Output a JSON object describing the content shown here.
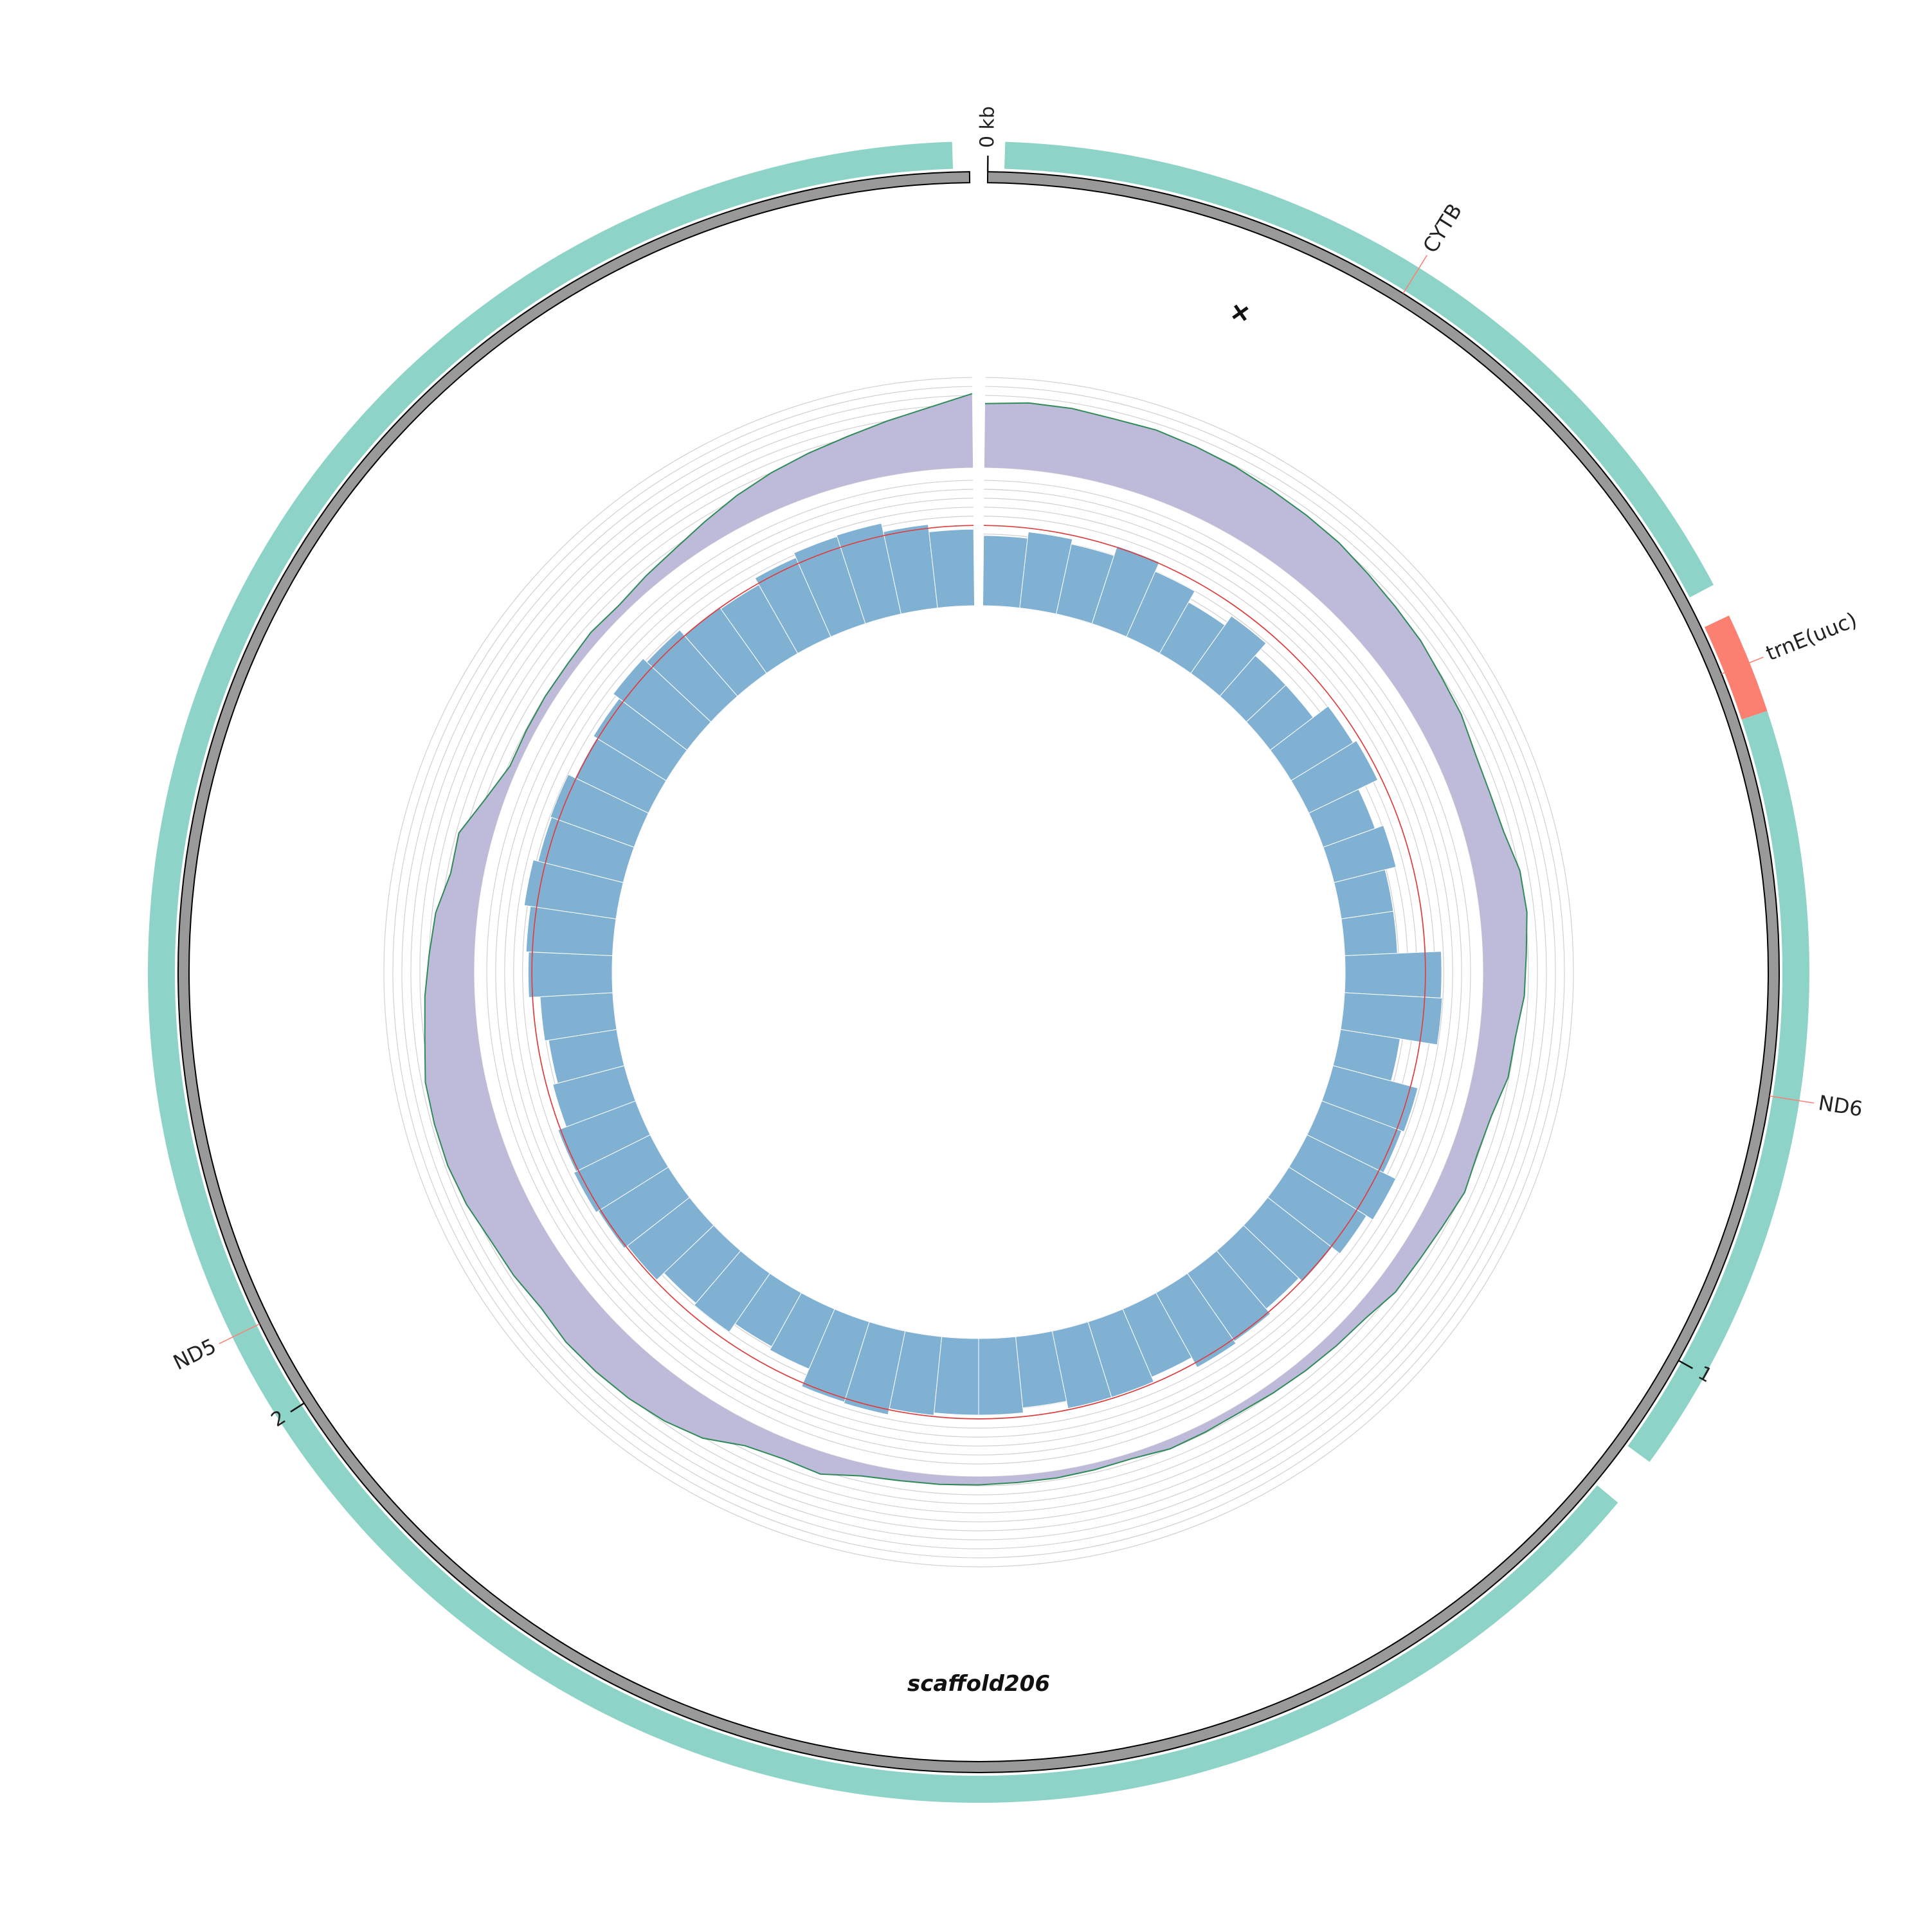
{
  "scaffold": {
    "name": "scaffold206",
    "length_kb": 3.03,
    "strand_symbol": "+"
  },
  "scale": {
    "ticks": [
      {
        "kb": 0,
        "label": "0 kb"
      },
      {
        "kb": 1,
        "label": "1"
      },
      {
        "kb": 2,
        "label": "2"
      }
    ]
  },
  "genes": [
    {
      "name": "CYTB",
      "start_kb": 0.01,
      "end_kb": 0.52,
      "type": "cds"
    },
    {
      "name": "trnE(uuc)",
      "start_kb": 0.54,
      "end_kb": 0.6,
      "type": "trna"
    },
    {
      "name": "ND6",
      "start_kb": 0.6,
      "end_kb": 1.06,
      "type": "cds"
    },
    {
      "name": "ND5",
      "start_kb": 1.09,
      "end_kb": 3.02,
      "type": "cds"
    }
  ],
  "gc_skew": {
    "values": [
      0.71,
      0.74,
      0.74,
      0.72,
      0.73,
      0.71,
      0.69,
      0.66,
      0.64,
      0.62,
      0.58,
      0.55,
      0.53,
      0.49,
      0.47,
      0.42,
      0.41,
      0.43,
      0.51,
      0.52,
      0.48,
      0.46,
      0.4,
      0.39,
      0.31,
      0.29,
      0.32,
      0.27,
      0.24,
      0.23,
      0.16,
      0.14,
      0.12,
      0.1,
      0.08,
      0.09,
      0.1,
      0.06,
      0.07,
      0.08,
      0.08,
      0.09,
      0.1,
      0.11,
      0.14,
      0.24,
      0.22,
      0.26,
      0.41,
      0.48,
      0.52,
      0.54,
      0.55,
      0.52,
      0.56,
      0.58,
      0.64,
      0.67,
      0.67,
      0.66,
      0.59,
      0.55,
      0.5,
      0.46,
      0.36,
      0.37,
      0.2,
      0.08,
      0.09,
      0.1,
      0.1,
      0.12,
      0.1,
      0.14,
      0.18,
      0.25,
      0.33,
      0.4,
      0.46,
      0.52,
      0.6,
      0.69,
      0.82
    ]
  },
  "coverage": {
    "values": [
      0.56,
      0.61,
      0.57,
      0.65,
      0.57,
      0.47,
      0.56,
      0.43,
      0.43,
      0.58,
      0.61,
      0.44,
      0.51,
      0.42,
      0.42,
      0.77,
      0.78,
      0.48,
      0.7,
      0.68,
      0.79,
      0.73,
      0.65,
      0.61,
      0.66,
      0.68,
      0.59,
      0.63,
      0.63,
      0.57,
      0.61,
      0.61,
      0.63,
      0.68,
      0.67,
      0.52,
      0.49,
      0.57,
      0.55,
      0.63,
      0.66,
      0.68,
      0.66,
      0.59,
      0.55,
      0.58,
      0.67,
      0.69,
      0.74,
      0.7,
      0.71,
      0.65,
      0.68,
      0.74,
      0.7,
      0.64,
      0.63,
      0.69,
      0.73,
      0.74,
      0.67,
      0.61
    ],
    "reference_line": 0.64
  },
  "colors": {
    "cds": "#8dd3c7",
    "trna": "#fb8072",
    "label_connector": "#fb8072",
    "backbone": "#999999",
    "gc_fill": "#bebada",
    "gc_outline": "#2e8b57",
    "coverage_bar": "#80b1d3",
    "reference": "#e03a3a",
    "grid": "#d0d0d0"
  }
}
